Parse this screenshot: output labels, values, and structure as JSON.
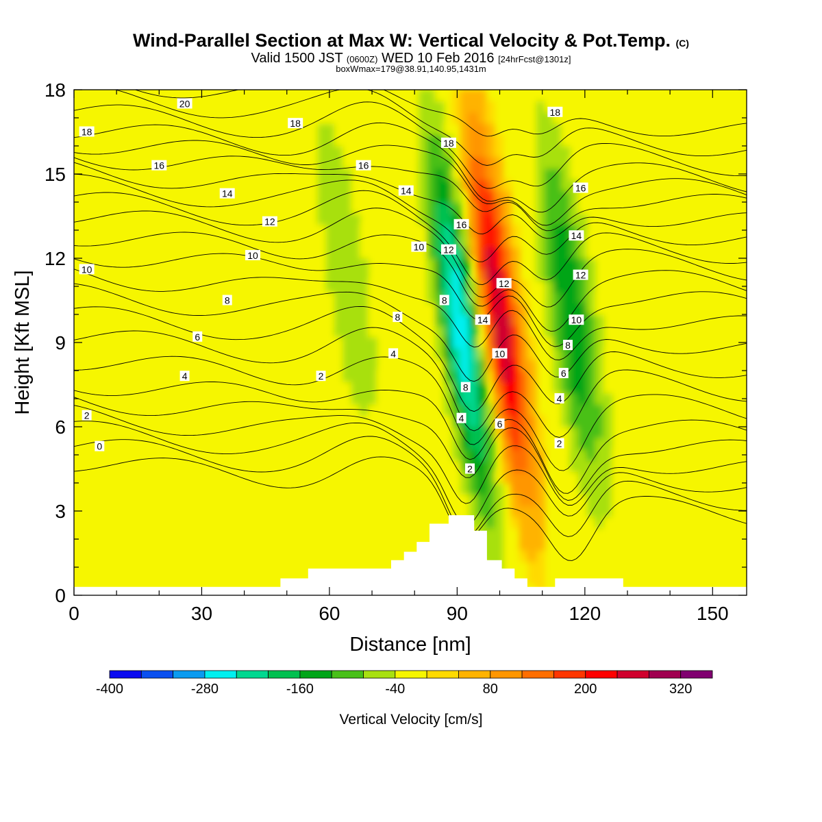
{
  "header": {
    "title": "Wind-Parallel Section at Max W: Vertical Velocity & Pot.Temp.",
    "title_mark": "(C)",
    "valid_prefix": "Valid 1500 JST",
    "valid_utc": "(0600Z)",
    "valid_date": "WED 10 Feb 2016",
    "forecast_info": "[24hrFcst@1301z]",
    "box_info": "boxWmax=179@38.91,140.95,1431m"
  },
  "colors": {
    "background_fill": "#f6f600",
    "terrain": "#ffffff",
    "contour_line": "#000000"
  },
  "chart_data": {
    "type": "heatmap",
    "title": "Wind-Parallel Section at Max W: Vertical Velocity & Pot.Temp.",
    "xlabel": "Distance [nm]",
    "ylabel": "Height [Kft MSL]",
    "xlim": [
      0,
      158
    ],
    "ylim": [
      0,
      18
    ],
    "x_ticks": [
      0,
      30,
      60,
      90,
      120,
      150
    ],
    "y_ticks": [
      0,
      3,
      6,
      9,
      12,
      15,
      18
    ],
    "colorbar": {
      "label": "Vertical Velocity [cm/s]",
      "min": -400,
      "max": 360,
      "step": 40,
      "tick_labels": [
        "-400",
        "-280",
        "-160",
        "-40",
        "80",
        "200",
        "320"
      ],
      "colors": [
        "#0a0af0",
        "#0a50f0",
        "#0a9bf0",
        "#00f0f0",
        "#00d890",
        "#00c050",
        "#00a518",
        "#48c018",
        "#a8e010",
        "#f6f600",
        "#ffda00",
        "#ffb300",
        "#ff9600",
        "#ff6e00",
        "#ff3600",
        "#ff0000",
        "#d0002d",
        "#a00050",
        "#800070"
      ]
    },
    "velocity_features": [
      {
        "type": "downdraft",
        "x": 91,
        "z": 9.5,
        "min_cms": -280
      },
      {
        "type": "updraft",
        "x": 100,
        "z": 10,
        "max_cms": 280
      },
      {
        "type": "downdraft",
        "x": 117,
        "z": 10,
        "min_cms": -160
      },
      {
        "type": "downdraft",
        "x": 64,
        "z": 11.5,
        "min_cms": -80
      }
    ],
    "theta_contours": {
      "units": "C",
      "interval": 1,
      "labeled_levels": [
        0,
        2,
        4,
        6,
        8,
        10,
        12,
        14,
        16,
        18,
        20
      ],
      "upstream_profile": {
        "levels": [
          0,
          2,
          4,
          6,
          8,
          10,
          12,
          14,
          16,
          18,
          20
        ],
        "heights_kft": [
          5.3,
          6.4,
          7.6,
          9.2,
          10.7,
          12.2,
          13.5,
          14.6,
          15.7,
          16.6,
          17.8
        ]
      },
      "labels": [
        {
          "text": "20",
          "x": 26,
          "z": 17.5
        },
        {
          "text": "18",
          "x": 3,
          "z": 16.5
        },
        {
          "text": "16",
          "x": 20,
          "z": 15.3
        },
        {
          "text": "14",
          "x": 36,
          "z": 14.3
        },
        {
          "text": "12",
          "x": 46,
          "z": 13.3
        },
        {
          "text": "10",
          "x": 42,
          "z": 12.1
        },
        {
          "text": "10",
          "x": 3,
          "z": 11.6
        },
        {
          "text": "8",
          "x": 36,
          "z": 10.5
        },
        {
          "text": "6",
          "x": 29,
          "z": 9.2
        },
        {
          "text": "4",
          "x": 26,
          "z": 7.8
        },
        {
          "text": "2",
          "x": 3,
          "z": 6.4
        },
        {
          "text": "0",
          "x": 6,
          "z": 5.3
        },
        {
          "text": "18",
          "x": 52,
          "z": 16.8
        },
        {
          "text": "16",
          "x": 68,
          "z": 15.3
        },
        {
          "text": "14",
          "x": 78,
          "z": 14.4
        },
        {
          "text": "10",
          "x": 81,
          "z": 12.4
        },
        {
          "text": "8",
          "x": 76,
          "z": 9.9
        },
        {
          "text": "4",
          "x": 75,
          "z": 8.6
        },
        {
          "text": "2",
          "x": 58,
          "z": 7.8
        },
        {
          "text": "18",
          "x": 88,
          "z": 16.1
        },
        {
          "text": "16",
          "x": 91,
          "z": 13.2
        },
        {
          "text": "12",
          "x": 88,
          "z": 12.3
        },
        {
          "text": "8",
          "x": 87,
          "z": 10.5
        },
        {
          "text": "14",
          "x": 96,
          "z": 9.8
        },
        {
          "text": "8",
          "x": 92,
          "z": 7.4
        },
        {
          "text": "4",
          "x": 91,
          "z": 6.3
        },
        {
          "text": "2",
          "x": 93,
          "z": 4.5
        },
        {
          "text": "12",
          "x": 101,
          "z": 11.1
        },
        {
          "text": "10",
          "x": 100,
          "z": 8.6
        },
        {
          "text": "6",
          "x": 100,
          "z": 6.1
        },
        {
          "text": "18",
          "x": 113,
          "z": 17.2
        },
        {
          "text": "16",
          "x": 119,
          "z": 14.5
        },
        {
          "text": "14",
          "x": 118,
          "z": 12.8
        },
        {
          "text": "12",
          "x": 119,
          "z": 11.4
        },
        {
          "text": "10",
          "x": 118,
          "z": 9.8
        },
        {
          "text": "8",
          "x": 116,
          "z": 8.9
        },
        {
          "text": "6",
          "x": 115,
          "z": 7.9
        },
        {
          "text": "4",
          "x": 114,
          "z": 7.0
        },
        {
          "text": "2",
          "x": 114,
          "z": 5.4
        }
      ]
    },
    "terrain_profile": {
      "units": "kft",
      "x": [
        0,
        48.5,
        48.5,
        55,
        55,
        74.5,
        74.5,
        77.5,
        77.5,
        80.5,
        80.5,
        83.5,
        83.5,
        86.5,
        86.5,
        88,
        88,
        94,
        94,
        97,
        97,
        100.5,
        100.5,
        103.5,
        103.5,
        106.5,
        106.5,
        113,
        113,
        129,
        129,
        158
      ],
      "z": [
        0.3,
        0.3,
        0.6,
        0.6,
        0.95,
        0.95,
        1.25,
        1.25,
        1.55,
        1.55,
        1.9,
        1.9,
        2.55,
        2.55,
        2.55,
        2.55,
        2.85,
        2.85,
        2.3,
        2.3,
        1.25,
        1.25,
        0.95,
        0.95,
        0.6,
        0.6,
        0.3,
        0.3,
        0.6,
        0.6,
        0.3,
        0.3
      ]
    }
  }
}
